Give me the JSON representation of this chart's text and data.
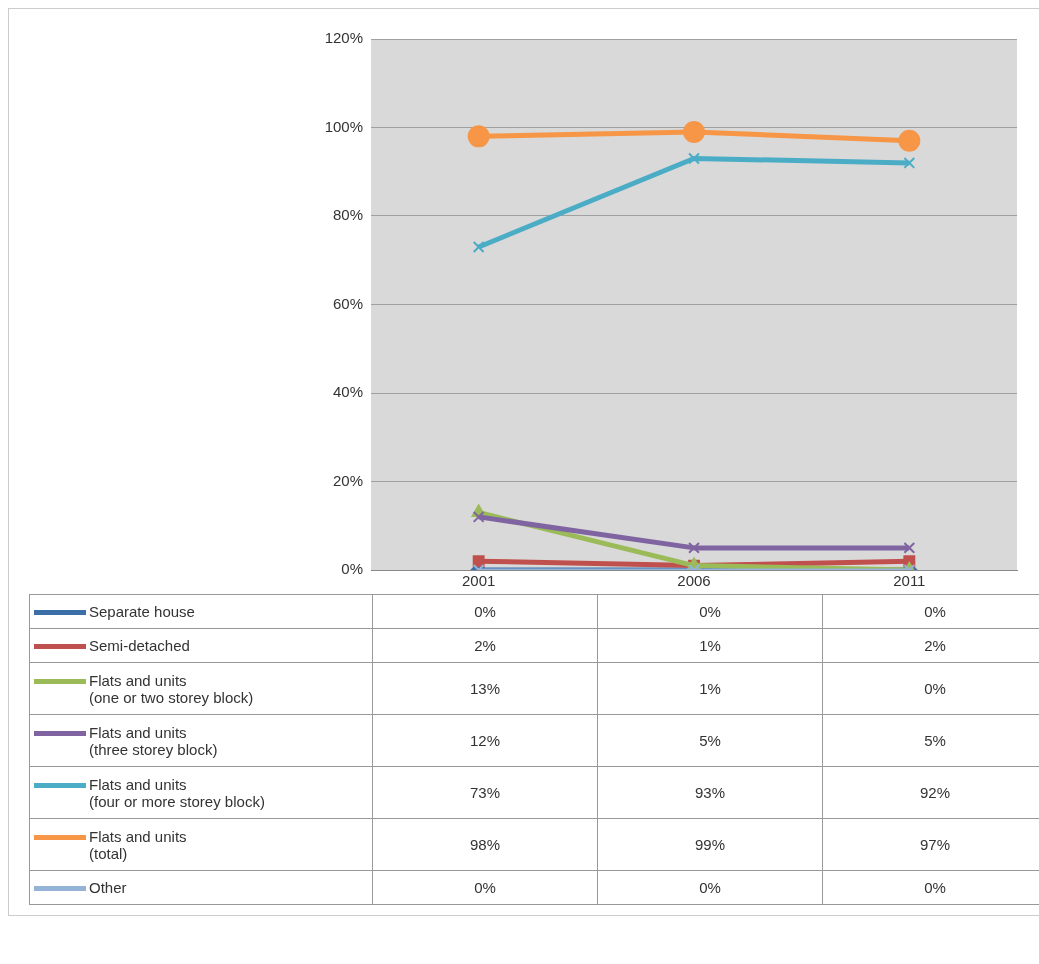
{
  "chart_data": {
    "type": "line",
    "categories": [
      "2001",
      "2006",
      "2011"
    ],
    "ylim": [
      0,
      1.2
    ],
    "yticks": [
      {
        "value": 0,
        "label": "0%"
      },
      {
        "value": 0.2,
        "label": "20%"
      },
      {
        "value": 0.4,
        "label": "40%"
      },
      {
        "value": 0.6,
        "label": "60%"
      },
      {
        "value": 0.8,
        "label": "80%"
      },
      {
        "value": 1,
        "label": "100%"
      },
      {
        "value": 1.2,
        "label": "120%"
      }
    ],
    "grid": "y",
    "legend": "bottom",
    "series": [
      {
        "name": "Separate house",
        "color": "#3c6ea8",
        "marker": "diamond",
        "values": [
          0,
          0,
          0
        ],
        "value_labels": [
          "0%",
          "0%",
          "0%"
        ]
      },
      {
        "name": "Semi-detached",
        "color": "#c0504d",
        "marker": "square",
        "values": [
          0.02,
          0.01,
          0.02
        ],
        "value_labels": [
          "2%",
          "1%",
          "2%"
        ]
      },
      {
        "name": "Flats and units\n(one or two storey block)",
        "color": "#9bbb59",
        "marker": "triangle",
        "values": [
          0.13,
          0.01,
          0
        ],
        "value_labels": [
          "13%",
          "1%",
          "0%"
        ]
      },
      {
        "name": "Flats and units\n(three storey block)",
        "color": "#8064a2",
        "marker": "cross",
        "values": [
          0.12,
          0.05,
          0.05
        ],
        "value_labels": [
          "12%",
          "5%",
          "5%"
        ]
      },
      {
        "name": "Flats and units\n(four or more storey block)",
        "color": "#4bacc6",
        "marker": "cross",
        "values": [
          0.73,
          0.93,
          0.92
        ],
        "value_labels": [
          "73%",
          "93%",
          "92%"
        ]
      },
      {
        "name": "Flats and units\n(total)",
        "color": "#f79646",
        "marker": "circle",
        "values": [
          0.98,
          0.99,
          0.97
        ],
        "value_labels": [
          "98%",
          "99%",
          "97%"
        ]
      },
      {
        "name": "Other",
        "color": "#95b3d7",
        "marker": "cross",
        "values": [
          0,
          0,
          0
        ],
        "value_labels": [
          "0%",
          "0%",
          "0%"
        ]
      }
    ]
  }
}
